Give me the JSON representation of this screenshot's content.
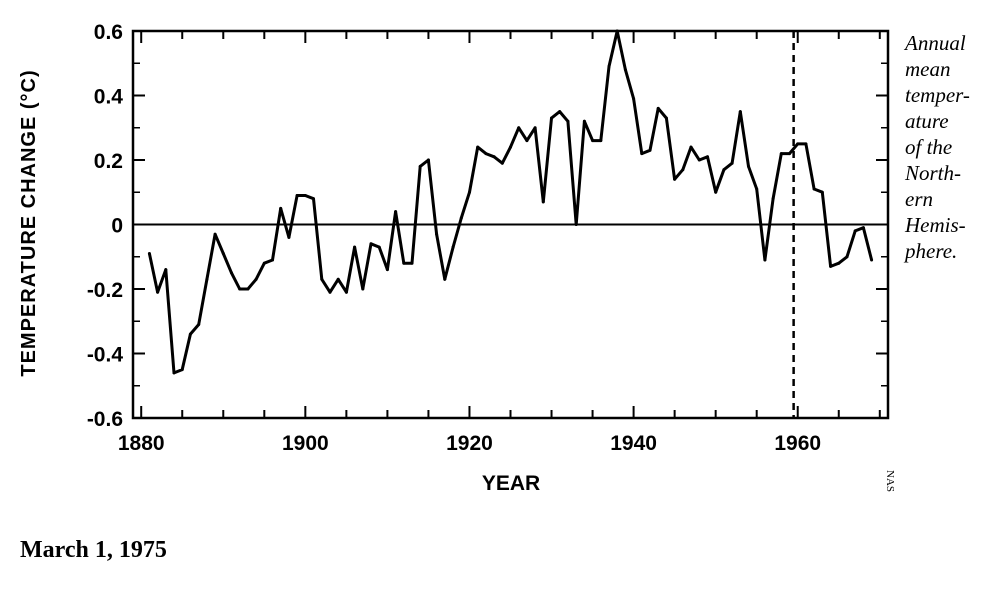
{
  "chart_data": {
    "type": "line",
    "xlabel": "YEAR",
    "ylabel": "TEMPERATURE CHANGE (°C)",
    "xlim": [
      1879,
      1971
    ],
    "ylim": [
      -0.6,
      0.6
    ],
    "x_ticks": [
      1880,
      1900,
      1920,
      1940,
      1960
    ],
    "y_ticks": [
      0.6,
      0.4,
      0.2,
      0,
      -0.2,
      -0.4,
      -0.6
    ],
    "y_tick_labels": [
      "0.6",
      "0.4",
      "0.2",
      "0",
      "-0.2",
      "-0.4",
      "-0.6"
    ],
    "grid": false,
    "reference_line_y": 0,
    "vline_x": 1959.5,
    "vline_style": "dashed",
    "series": [
      {
        "x": [
          1881,
          1882,
          1883,
          1884,
          1885,
          1886,
          1887,
          1888,
          1889,
          1890,
          1891,
          1892,
          1893,
          1894,
          1895,
          1896,
          1897,
          1898,
          1899,
          1900,
          1901,
          1902,
          1903,
          1904,
          1905,
          1906,
          1907,
          1908,
          1909,
          1910,
          1911,
          1912,
          1913,
          1914,
          1915,
          1916,
          1917,
          1918,
          1919,
          1920,
          1921,
          1922,
          1923,
          1924,
          1925,
          1926,
          1927,
          1928,
          1929,
          1930,
          1931,
          1932,
          1933,
          1934,
          1935,
          1936,
          1937,
          1938,
          1939,
          1940,
          1941,
          1942,
          1943,
          1944,
          1945,
          1946,
          1947,
          1948,
          1949,
          1950,
          1951,
          1952,
          1953,
          1954,
          1955,
          1956,
          1957,
          1958,
          1959,
          1960,
          1961,
          1962,
          1963,
          1964,
          1965,
          1966,
          1967,
          1968,
          1969
        ],
        "y": [
          -0.09,
          -0.21,
          -0.14,
          -0.46,
          -0.45,
          -0.34,
          -0.31,
          -0.17,
          -0.03,
          -0.09,
          -0.15,
          -0.2,
          -0.2,
          -0.17,
          -0.12,
          -0.11,
          0.05,
          -0.04,
          0.09,
          0.09,
          0.08,
          -0.17,
          -0.21,
          -0.17,
          -0.21,
          -0.07,
          -0.2,
          -0.06,
          -0.07,
          -0.14,
          0.04,
          -0.12,
          -0.12,
          0.18,
          0.2,
          -0.03,
          -0.17,
          -0.07,
          0.02,
          0.1,
          0.24,
          0.22,
          0.21,
          0.19,
          0.24,
          0.3,
          0.26,
          0.3,
          0.07,
          0.33,
          0.35,
          0.32,
          0.0,
          0.32,
          0.26,
          0.26,
          0.49,
          0.6,
          0.48,
          0.39,
          0.22,
          0.23,
          0.36,
          0.33,
          0.14,
          0.17,
          0.24,
          0.2,
          0.21,
          0.1,
          0.17,
          0.19,
          0.35,
          0.18,
          0.11,
          -0.11,
          0.08,
          0.22,
          0.22,
          0.25,
          0.25,
          0.11,
          0.1,
          -0.13,
          -0.12,
          -0.1,
          -0.02,
          -0.01,
          -0.11
        ]
      }
    ]
  },
  "caption": {
    "lines": [
      "Annual",
      "mean",
      "temper-",
      "ature",
      "of the",
      "North-",
      "ern",
      "Hemis-",
      "phere."
    ]
  },
  "date_text": "March 1, 1975",
  "credit_text": "NAS"
}
